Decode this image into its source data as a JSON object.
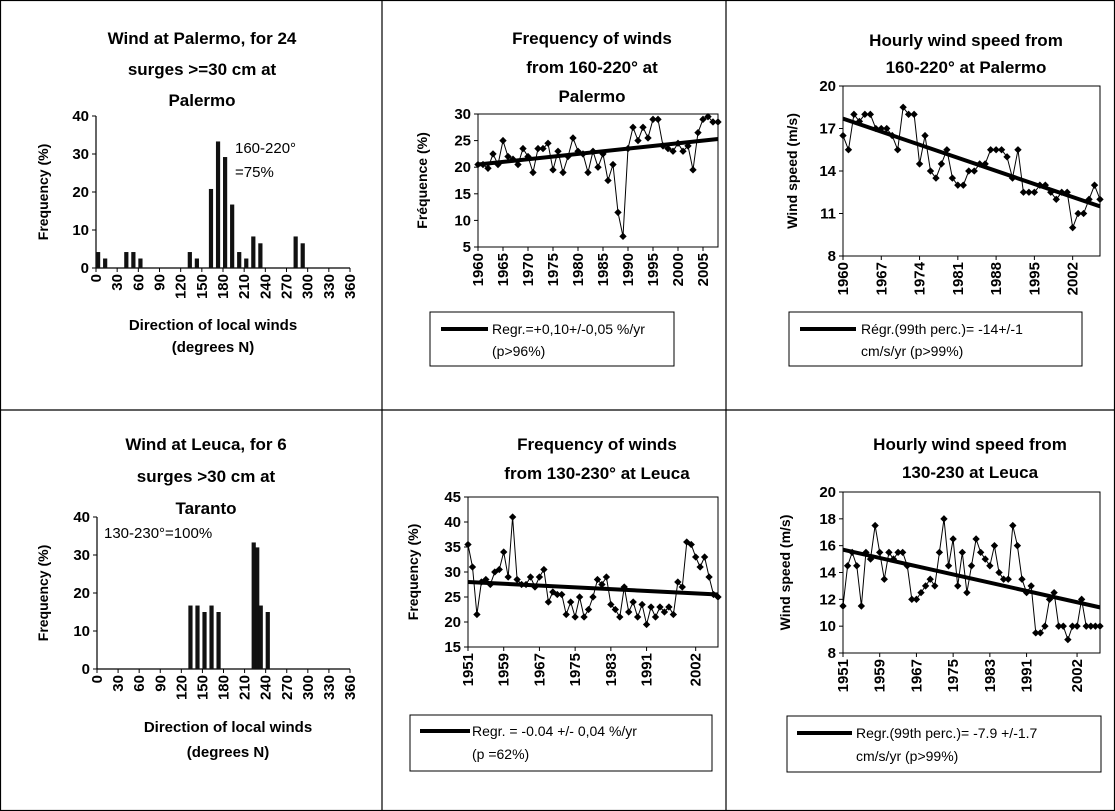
{
  "chart_data": [
    {
      "type": "bar",
      "title": "Wind at Palermo, for 24 surges >=30 cm at Palermo",
      "title_lines": [
        "Wind at Palermo, for 24",
        "surges >=30 cm at",
        "Palermo"
      ],
      "xlabel_lines": [
        "Direction of local winds",
        "(degrees N)"
      ],
      "ylabel": "Frequency (%)",
      "ylim": [
        0,
        40
      ],
      "yticks": [
        0,
        10,
        20,
        30,
        40
      ],
      "xlim": [
        0,
        360
      ],
      "xticks": [
        0,
        30,
        60,
        90,
        120,
        150,
        180,
        210,
        240,
        270,
        300,
        330,
        360
      ],
      "annotation_lines": [
        "160-220°",
        "=75%"
      ],
      "bars": [
        {
          "x": 0,
          "v": 4.2
        },
        {
          "x": 10,
          "v": 2.5
        },
        {
          "x": 40,
          "v": 4.2
        },
        {
          "x": 50,
          "v": 4.2
        },
        {
          "x": 60,
          "v": 2.5
        },
        {
          "x": 130,
          "v": 4.2
        },
        {
          "x": 140,
          "v": 2.5
        },
        {
          "x": 160,
          "v": 20.8
        },
        {
          "x": 170,
          "v": 33.3
        },
        {
          "x": 180,
          "v": 29.2
        },
        {
          "x": 190,
          "v": 16.7
        },
        {
          "x": 200,
          "v": 4.2
        },
        {
          "x": 210,
          "v": 2.5
        },
        {
          "x": 220,
          "v": 8.3
        },
        {
          "x": 230,
          "v": 6.5
        },
        {
          "x": 280,
          "v": 8.3
        },
        {
          "x": 290,
          "v": 6.5
        }
      ]
    },
    {
      "type": "line",
      "title": "Frequency of winds from 160-220° at Palermo",
      "title_lines": [
        "Frequency of winds",
        "from 160-220° at",
        "Palermo"
      ],
      "ylabel": "Fréquence (%)",
      "ylim": [
        5,
        30
      ],
      "yticks": [
        5,
        10,
        15,
        20,
        25,
        30
      ],
      "xlim": [
        1960,
        2008
      ],
      "xticks": [
        1960,
        1965,
        1970,
        1975,
        1980,
        1985,
        1990,
        1995,
        2000,
        2005
      ],
      "x": [
        1960,
        1961,
        1962,
        1963,
        1964,
        1965,
        1966,
        1967,
        1968,
        1969,
        1970,
        1971,
        1972,
        1973,
        1974,
        1975,
        1976,
        1977,
        1978,
        1979,
        1980,
        1981,
        1982,
        1983,
        1984,
        1985,
        1986,
        1987,
        1988,
        1989,
        1990,
        1991,
        1992,
        1993,
        1994,
        1995,
        1996,
        1997,
        1998,
        1999,
        2000,
        2001,
        2002,
        2003,
        2004,
        2005,
        2006,
        2007,
        2008
      ],
      "values": [
        20.5,
        20.5,
        19.8,
        22.5,
        20.5,
        25,
        22,
        21.5,
        20.5,
        23.5,
        22,
        19,
        23.5,
        23.5,
        24.5,
        19.5,
        23,
        19,
        22,
        25.5,
        23,
        22.5,
        19,
        23,
        20,
        22.5,
        17.5,
        20.5,
        11.5,
        7,
        23.5,
        27.5,
        25,
        27.5,
        25.5,
        29,
        29,
        24,
        23.5,
        23,
        24.5,
        23,
        24,
        19.5,
        26.5,
        29,
        29.5,
        28.5,
        28.5
      ],
      "trend": [
        20.5,
        25.3
      ],
      "legend_lines": [
        "Regr.=+0,10+/-0,05 %/yr",
        "(p>96%)"
      ]
    },
    {
      "type": "line",
      "title": "Hourly wind speed from 160-220° at Palermo",
      "title_lines": [
        "Hourly wind speed from",
        "160-220° at Palermo"
      ],
      "ylabel": "Wind speed (m/s)",
      "ylim": [
        8,
        20
      ],
      "yticks": [
        8,
        11,
        14,
        17,
        20
      ],
      "xlim": [
        1960,
        2007
      ],
      "xticks": [
        1960,
        1967,
        1974,
        1981,
        1988,
        1995,
        2002
      ],
      "x": [
        1960,
        1961,
        1962,
        1963,
        1964,
        1965,
        1966,
        1967,
        1968,
        1969,
        1970,
        1971,
        1972,
        1973,
        1974,
        1975,
        1976,
        1977,
        1978,
        1979,
        1980,
        1981,
        1982,
        1983,
        1984,
        1985,
        1986,
        1987,
        1988,
        1989,
        1990,
        1991,
        1992,
        1993,
        1994,
        1995,
        1996,
        1997,
        1998,
        1999,
        2000,
        2001,
        2002,
        2003,
        2004,
        2005,
        2006,
        2007
      ],
      "values": [
        16.5,
        15.5,
        18,
        17.5,
        18,
        18,
        17,
        17,
        17,
        16.5,
        15.5,
        18.5,
        18,
        18,
        14.5,
        16.5,
        14,
        13.5,
        14.5,
        15.5,
        13.5,
        13,
        13,
        14,
        14,
        14.5,
        14.5,
        15.5,
        15.5,
        15.5,
        15,
        13.5,
        15.5,
        12.5,
        12.5,
        12.5,
        13,
        13,
        12.5,
        12,
        12.5,
        12.5,
        10,
        11,
        11,
        12,
        13,
        12
      ],
      "trend": [
        17.7,
        11.5
      ],
      "legend_lines": [
        "Régr.(99th perc.)= -14+/-1",
        "cm/s/yr (p>99%)"
      ]
    },
    {
      "type": "bar",
      "title": "Wind at Leuca, for 6 surges >30 cm at Taranto",
      "title_lines": [
        "Wind at Leuca, for 6",
        "surges >30 cm at",
        "Taranto"
      ],
      "xlabel_lines": [
        "Direction of local winds",
        "(degrees N)"
      ],
      "ylabel": "Frequency (%)",
      "ylim": [
        0,
        40
      ],
      "yticks": [
        0,
        10,
        20,
        30,
        40
      ],
      "xlim": [
        0,
        360
      ],
      "xticks": [
        0,
        30,
        60,
        90,
        120,
        150,
        180,
        210,
        240,
        270,
        300,
        330,
        360
      ],
      "annotation_lines": [
        "130-230°=100%"
      ],
      "bars": [
        {
          "x": 130,
          "v": 16.7
        },
        {
          "x": 140,
          "v": 16.7
        },
        {
          "x": 150,
          "v": 15
        },
        {
          "x": 160,
          "v": 16.7
        },
        {
          "x": 170,
          "v": 15
        },
        {
          "x": 220,
          "v": 33.3
        },
        {
          "x": 225,
          "v": 32
        },
        {
          "x": 230,
          "v": 16.7
        },
        {
          "x": 240,
          "v": 15
        }
      ]
    },
    {
      "type": "line",
      "title": "Frequency of winds from 130-230° at Leuca",
      "title_lines": [
        "Frequency of winds",
        "from 130-230° at Leuca"
      ],
      "ylabel": "Frequency (%)",
      "ylim": [
        15,
        45
      ],
      "yticks": [
        15,
        20,
        25,
        30,
        35,
        40,
        45
      ],
      "xlim": [
        1951,
        2007
      ],
      "xticks": [
        1951,
        1959,
        1967,
        1975,
        1983,
        1991,
        2002
      ],
      "x": [
        1951,
        1952,
        1953,
        1954,
        1955,
        1956,
        1957,
        1958,
        1959,
        1960,
        1961,
        1962,
        1963,
        1964,
        1965,
        1966,
        1967,
        1968,
        1969,
        1970,
        1971,
        1972,
        1973,
        1974,
        1975,
        1976,
        1977,
        1978,
        1979,
        1980,
        1981,
        1982,
        1983,
        1984,
        1985,
        1986,
        1987,
        1988,
        1989,
        1990,
        1991,
        1992,
        1993,
        1994,
        1995,
        1996,
        1997,
        1998,
        1999,
        2000,
        2001,
        2002,
        2003,
        2004,
        2005,
        2006,
        2007
      ],
      "values": [
        35.5,
        31,
        21.5,
        28,
        28.5,
        27.5,
        30,
        30.5,
        34,
        29,
        41,
        28.5,
        27.5,
        27.5,
        29,
        27,
        29,
        30.5,
        24,
        26,
        25.5,
        25.5,
        21.5,
        24,
        21,
        25,
        21,
        22.5,
        25,
        28.5,
        27.5,
        29,
        23.5,
        22.5,
        21,
        27,
        22,
        24,
        21,
        23.5,
        19.5,
        23,
        21,
        23,
        22,
        23,
        21.5,
        28,
        27,
        36,
        35.5,
        33,
        31,
        33,
        29,
        25.5,
        25
      ],
      "trend": [
        28,
        25.5
      ],
      "legend_lines": [
        "Regr. = -0.04 +/- 0,04 %/yr",
        "(p =62%)"
      ]
    },
    {
      "type": "line",
      "title": "Hourly wind speed from 130-230 at Leuca",
      "title_lines": [
        "Hourly wind speed from",
        "130-230 at Leuca"
      ],
      "ylabel": "Wind speed (m/s)",
      "ylim": [
        8,
        20
      ],
      "yticks": [
        8,
        10,
        12,
        14,
        16,
        18,
        20
      ],
      "xlim": [
        1951,
        2007
      ],
      "xticks": [
        1951,
        1959,
        1967,
        1975,
        1983,
        1991,
        2002
      ],
      "x": [
        1951,
        1952,
        1953,
        1954,
        1955,
        1956,
        1957,
        1958,
        1959,
        1960,
        1961,
        1962,
        1963,
        1964,
        1965,
        1966,
        1967,
        1968,
        1969,
        1970,
        1971,
        1972,
        1973,
        1974,
        1975,
        1976,
        1977,
        1978,
        1979,
        1980,
        1981,
        1982,
        1983,
        1984,
        1985,
        1986,
        1987,
        1988,
        1989,
        1990,
        1991,
        1992,
        1993,
        1994,
        1995,
        1996,
        1997,
        1998,
        1999,
        2000,
        2001,
        2002,
        2003,
        2004,
        2005,
        2006,
        2007
      ],
      "values": [
        11.5,
        14.5,
        15.5,
        14.5,
        11.5,
        15.5,
        15,
        17.5,
        15.5,
        13.5,
        15.5,
        15,
        15.5,
        15.5,
        14.5,
        12,
        12,
        12.5,
        13,
        13.5,
        13,
        15.5,
        18,
        14.5,
        16.5,
        13,
        15.5,
        12.5,
        14.5,
        16.5,
        15.5,
        15,
        14.5,
        16,
        14,
        13.5,
        13.5,
        17.5,
        16,
        13.5,
        12.5,
        13,
        9.5,
        9.5,
        10,
        12,
        12.5,
        10,
        10,
        9,
        10,
        10,
        12,
        10,
        10,
        10,
        10
      ],
      "trend": [
        15.7,
        11.4
      ],
      "legend_lines": [
        "Regr.(99th perc.)= -7.9 +/-1.7",
        "cm/s/yr (p>99%)"
      ]
    }
  ]
}
